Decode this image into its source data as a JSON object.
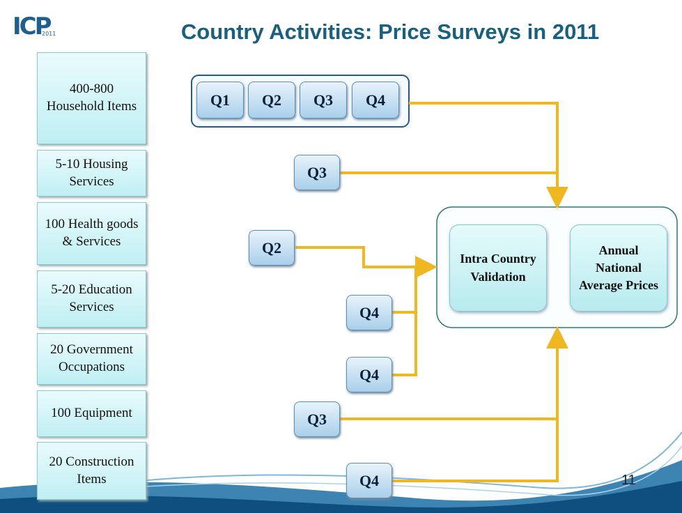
{
  "header": {
    "logo": "ICP",
    "logo_year": "2011",
    "title": "Country Activities: Price Surveys in 2011"
  },
  "categories": [
    "400-800 Household Items",
    "5-10 Housing Services",
    "100 Health goods & Services",
    "5-20 Education Services",
    "20 Government Occupations",
    "100 Equipment",
    "20 Construction Items"
  ],
  "quarter_group": [
    "Q1",
    "Q2",
    "Q3",
    "Q4"
  ],
  "survey_rows": [
    "Q3",
    "Q2",
    "Q4",
    "Q4",
    "Q3",
    "Q4"
  ],
  "outputs": [
    "Intra Country Validation",
    "Annual National Average Prices"
  ],
  "page_number": "11"
}
